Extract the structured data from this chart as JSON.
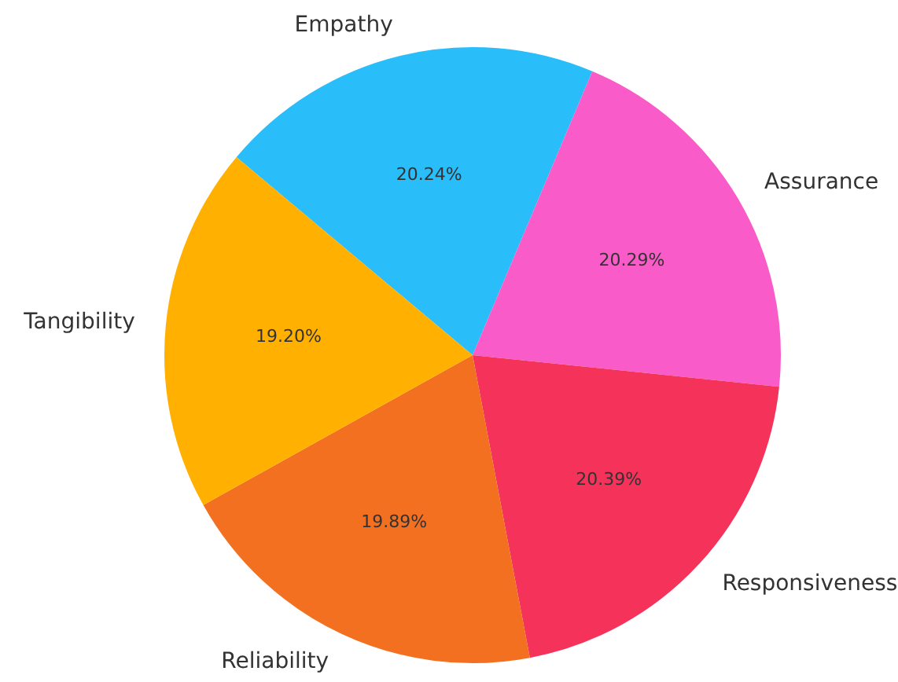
{
  "chart_data": {
    "type": "pie",
    "categories": [
      "Empathy",
      "Assurance",
      "Responsiveness",
      "Reliability",
      "Tangibility"
    ],
    "values": [
      20.24,
      20.29,
      20.39,
      19.89,
      19.2
    ],
    "colors": [
      "#29bdfa",
      "#f95bc9",
      "#f5325a",
      "#f37021",
      "#ffb000"
    ],
    "value_labels": [
      "20.24%",
      "20.29%",
      "20.39%",
      "19.89%",
      "19.20%"
    ],
    "legend": false
  }
}
